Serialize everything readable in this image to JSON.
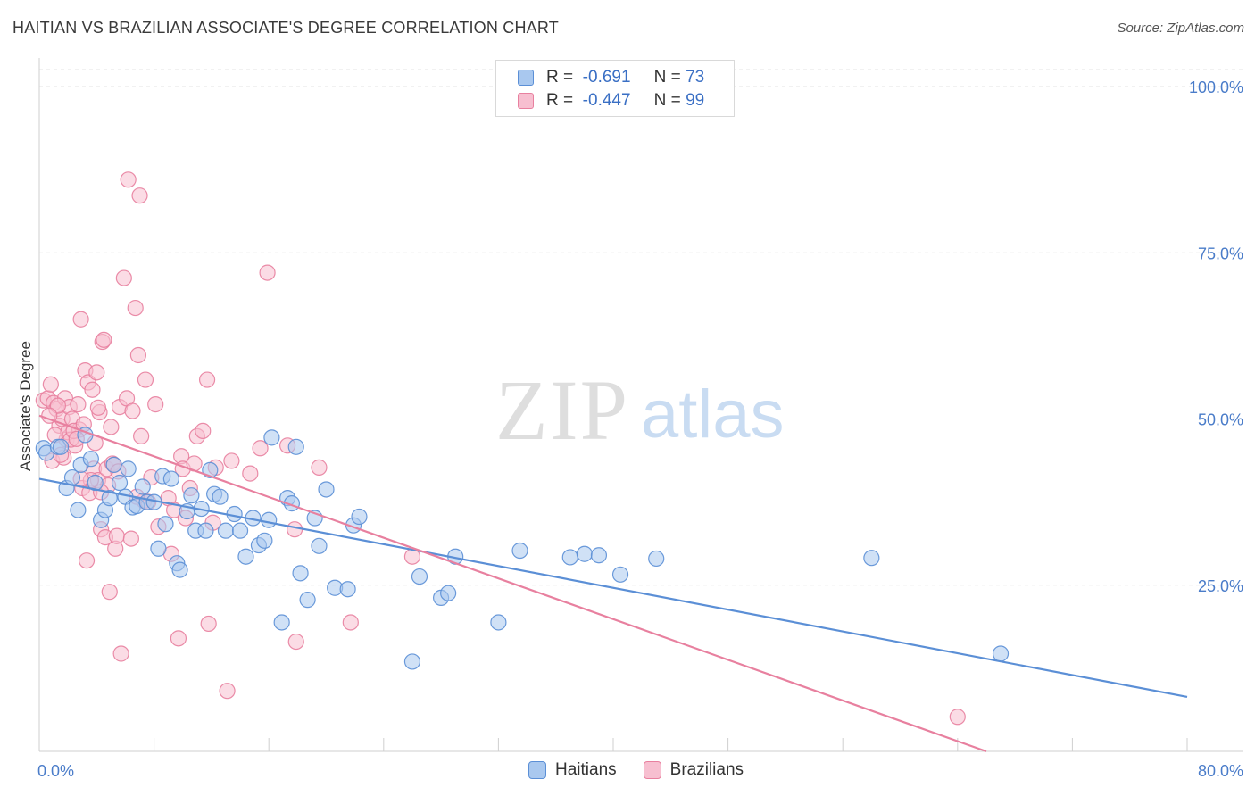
{
  "title": "HAITIAN VS BRAZILIAN ASSOCIATE'S DEGREE CORRELATION CHART",
  "source": "Source: ZipAtlas.com",
  "watermark": {
    "zip": "ZIP",
    "atlas": "atlas"
  },
  "legend": {
    "rows": [
      {
        "r_label": "R =",
        "r_value": "-0.691",
        "n_label": "N =",
        "n_value": "73",
        "color": "#a9c8ef",
        "stroke": "#5b8fd6"
      },
      {
        "r_label": "R =",
        "r_value": "-0.447",
        "n_label": "N =",
        "n_value": "99",
        "color": "#f7bfd0",
        "stroke": "#e8809f"
      }
    ]
  },
  "bottom_legend": [
    {
      "label": "Haitians",
      "color": "#a9c8ef",
      "stroke": "#5b8fd6"
    },
    {
      "label": "Brazilians",
      "color": "#f7bfd0",
      "stroke": "#e8809f"
    }
  ],
  "chart_data": {
    "type": "scatter",
    "title": "HAITIAN VS BRAZILIAN ASSOCIATE'S DEGREE CORRELATION CHART",
    "xlabel": "",
    "ylabel": "Associate's Degree",
    "xlim": [
      0,
      80
    ],
    "ylim": [
      0,
      105
    ],
    "x_tick_labels": [
      "0.0%",
      "80.0%"
    ],
    "y_ticks": [
      25,
      50,
      75,
      100
    ],
    "y_tick_labels": [
      "25.0%",
      "50.0%",
      "75.0%",
      "100.0%"
    ],
    "grid": true,
    "series": [
      {
        "name": "Haitians",
        "color": "#5b8fd6",
        "fill": "#a9c8ef",
        "trend": {
          "x": [
            0,
            80
          ],
          "y": [
            41.0,
            8.2
          ]
        },
        "points": [
          [
            0.3,
            45.6
          ],
          [
            0.5,
            44.9
          ],
          [
            1.3,
            45.8
          ],
          [
            1.5,
            45.8
          ],
          [
            1.9,
            39.6
          ],
          [
            2.3,
            41.2
          ],
          [
            2.7,
            36.3
          ],
          [
            2.9,
            43.1
          ],
          [
            3.2,
            47.6
          ],
          [
            3.6,
            44.0
          ],
          [
            3.9,
            40.4
          ],
          [
            4.3,
            34.8
          ],
          [
            4.6,
            36.3
          ],
          [
            4.9,
            38.1
          ],
          [
            5.2,
            43.1
          ],
          [
            5.6,
            40.4
          ],
          [
            6.0,
            38.3
          ],
          [
            6.2,
            42.5
          ],
          [
            6.5,
            36.7
          ],
          [
            6.8,
            36.9
          ],
          [
            7.2,
            39.8
          ],
          [
            7.5,
            37.5
          ],
          [
            8.0,
            37.5
          ],
          [
            8.3,
            30.5
          ],
          [
            8.8,
            34.2
          ],
          [
            8.6,
            41.4
          ],
          [
            9.2,
            41.0
          ],
          [
            9.6,
            28.3
          ],
          [
            9.8,
            27.3
          ],
          [
            10.3,
            36.1
          ],
          [
            10.6,
            38.5
          ],
          [
            10.9,
            33.2
          ],
          [
            11.3,
            36.5
          ],
          [
            11.6,
            33.2
          ],
          [
            11.9,
            42.3
          ],
          [
            12.2,
            38.7
          ],
          [
            12.6,
            38.3
          ],
          [
            13.0,
            33.2
          ],
          [
            13.6,
            35.7
          ],
          [
            14.0,
            33.2
          ],
          [
            14.4,
            29.3
          ],
          [
            14.9,
            35.1
          ],
          [
            15.3,
            31.0
          ],
          [
            15.7,
            31.7
          ],
          [
            16.0,
            34.8
          ],
          [
            16.2,
            47.2
          ],
          [
            16.9,
            19.4
          ],
          [
            17.3,
            38.1
          ],
          [
            17.6,
            37.3
          ],
          [
            17.9,
            45.8
          ],
          [
            18.2,
            26.8
          ],
          [
            18.7,
            22.8
          ],
          [
            19.2,
            35.1
          ],
          [
            19.5,
            30.9
          ],
          [
            20.0,
            39.4
          ],
          [
            20.6,
            24.6
          ],
          [
            21.5,
            24.4
          ],
          [
            21.9,
            34.0
          ],
          [
            22.3,
            35.3
          ],
          [
            26.0,
            13.5
          ],
          [
            26.5,
            26.3
          ],
          [
            28.0,
            23.1
          ],
          [
            28.5,
            23.8
          ],
          [
            29.0,
            29.3
          ],
          [
            32.0,
            19.4
          ],
          [
            33.5,
            30.2
          ],
          [
            37.0,
            29.2
          ],
          [
            38.0,
            29.7
          ],
          [
            39.0,
            29.5
          ],
          [
            40.5,
            26.6
          ],
          [
            43.0,
            29.0
          ],
          [
            58.0,
            29.1
          ],
          [
            67.0,
            14.7
          ]
        ]
      },
      {
        "name": "Brazilians",
        "color": "#e8809f",
        "fill": "#f7bfd0",
        "trend": {
          "x": [
            0,
            66
          ],
          "y": [
            50.5,
            0
          ]
        },
        "points": [
          [
            0.3,
            52.8
          ],
          [
            0.6,
            53.1
          ],
          [
            0.8,
            55.2
          ],
          [
            1.0,
            52.4
          ],
          [
            1.2,
            51.5
          ],
          [
            1.4,
            49.0
          ],
          [
            1.6,
            50.0
          ],
          [
            1.8,
            53.1
          ],
          [
            1.9,
            46.9
          ],
          [
            2.0,
            48.0
          ],
          [
            2.1,
            51.8
          ],
          [
            2.3,
            50.0
          ],
          [
            2.5,
            46.0
          ],
          [
            2.7,
            52.2
          ],
          [
            2.8,
            48.4
          ],
          [
            2.9,
            65.0
          ],
          [
            3.0,
            39.6
          ],
          [
            3.2,
            57.3
          ],
          [
            3.3,
            28.7
          ],
          [
            3.4,
            55.5
          ],
          [
            3.5,
            38.9
          ],
          [
            3.7,
            54.4
          ],
          [
            3.8,
            42.5
          ],
          [
            4.0,
            57.0
          ],
          [
            4.1,
            40.8
          ],
          [
            4.2,
            51.0
          ],
          [
            4.3,
            33.4
          ],
          [
            4.4,
            61.6
          ],
          [
            4.5,
            61.9
          ],
          [
            4.6,
            32.2
          ],
          [
            4.7,
            42.5
          ],
          [
            4.8,
            40.0
          ],
          [
            4.9,
            24.0
          ],
          [
            5.0,
            48.8
          ],
          [
            5.1,
            43.3
          ],
          [
            5.3,
            30.5
          ],
          [
            5.4,
            32.4
          ],
          [
            5.6,
            51.8
          ],
          [
            5.7,
            14.7
          ],
          [
            5.9,
            71.2
          ],
          [
            6.1,
            53.1
          ],
          [
            6.2,
            86.0
          ],
          [
            6.4,
            32.0
          ],
          [
            6.5,
            51.2
          ],
          [
            6.7,
            66.7
          ],
          [
            6.9,
            59.6
          ],
          [
            7.0,
            83.6
          ],
          [
            7.1,
            47.4
          ],
          [
            7.3,
            37.7
          ],
          [
            7.4,
            55.9
          ],
          [
            7.6,
            37.5
          ],
          [
            8.1,
            52.2
          ],
          [
            9.0,
            38.1
          ],
          [
            9.2,
            29.7
          ],
          [
            9.4,
            36.3
          ],
          [
            9.7,
            17.0
          ],
          [
            9.9,
            44.4
          ],
          [
            10.0,
            42.5
          ],
          [
            10.2,
            35.1
          ],
          [
            10.5,
            39.6
          ],
          [
            10.8,
            43.3
          ],
          [
            11.0,
            47.4
          ],
          [
            11.4,
            48.2
          ],
          [
            11.7,
            55.9
          ],
          [
            11.8,
            19.2
          ],
          [
            12.1,
            34.4
          ],
          [
            12.3,
            42.7
          ],
          [
            13.1,
            9.1
          ],
          [
            13.4,
            43.7
          ],
          [
            14.7,
            41.8
          ],
          [
            15.4,
            45.6
          ],
          [
            15.9,
            72.0
          ],
          [
            17.3,
            46.0
          ],
          [
            17.8,
            33.4
          ],
          [
            17.9,
            16.5
          ],
          [
            19.5,
            42.7
          ],
          [
            21.7,
            19.4
          ],
          [
            26.0,
            29.3
          ],
          [
            64.0,
            5.2
          ],
          [
            0.9,
            43.7
          ],
          [
            1.1,
            47.6
          ],
          [
            1.7,
            44.2
          ],
          [
            2.2,
            46.9
          ],
          [
            2.4,
            48.2
          ],
          [
            3.1,
            49.2
          ],
          [
            3.6,
            40.8
          ],
          [
            4.3,
            39.0
          ],
          [
            5.2,
            43.1
          ],
          [
            6.8,
            38.3
          ],
          [
            8.3,
            33.8
          ],
          [
            1.3,
            52.0
          ],
          [
            2.6,
            47.0
          ],
          [
            3.9,
            46.4
          ],
          [
            0.7,
            50.5
          ],
          [
            1.5,
            44.6
          ],
          [
            2.9,
            41.0
          ],
          [
            4.1,
            51.7
          ],
          [
            5.5,
            42.1
          ],
          [
            7.8,
            41.2
          ]
        ]
      }
    ]
  }
}
